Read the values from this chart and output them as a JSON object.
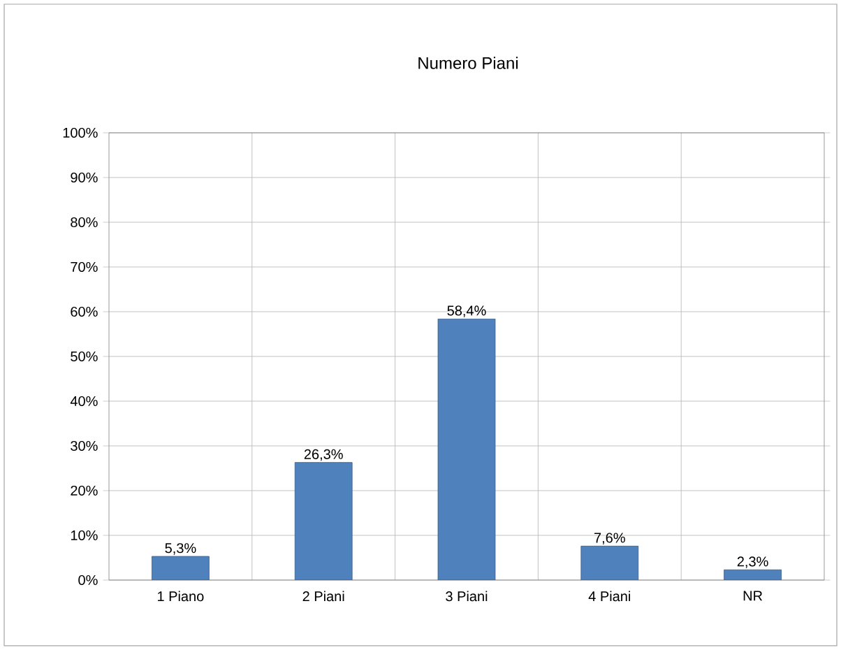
{
  "chart_data": {
    "type": "bar",
    "title": "Numero Piani",
    "categories": [
      "1 Piano",
      "2 Piani",
      "3 Piani",
      "4 Piani",
      "NR"
    ],
    "values": [
      5.3,
      26.3,
      58.4,
      7.6,
      2.3
    ],
    "value_labels": [
      "5,3%",
      "26,3%",
      "58,4%",
      "7,6%",
      "2,3%"
    ],
    "color": "#4f81bd",
    "ylim": [
      0,
      100
    ],
    "yticks": [
      {
        "value": 0,
        "label": "0%"
      },
      {
        "value": 10,
        "label": "10%"
      },
      {
        "value": 20,
        "label": "20%"
      },
      {
        "value": 30,
        "label": "30%"
      },
      {
        "value": 40,
        "label": "40%"
      },
      {
        "value": 50,
        "label": "50%"
      },
      {
        "value": 60,
        "label": "60%"
      },
      {
        "value": 70,
        "label": "70%"
      },
      {
        "value": 80,
        "label": "80%"
      },
      {
        "value": 90,
        "label": "90%"
      },
      {
        "value": 100,
        "label": "100%"
      }
    ],
    "grid": true
  }
}
